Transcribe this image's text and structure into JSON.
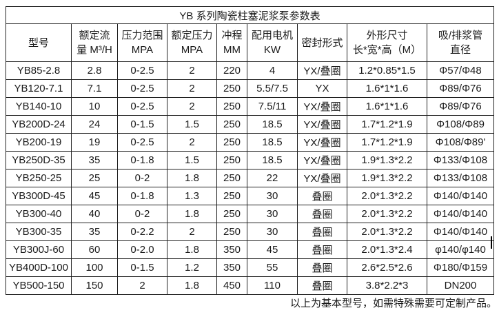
{
  "page": {
    "background": "#ffffff",
    "border_color": "#1f1f1f",
    "text_color": "#1a1a1a"
  },
  "table": {
    "title": "YB 系列陶瓷柱塞泥浆泵参数表",
    "headers": [
      {
        "line1": "型号",
        "line2": ""
      },
      {
        "line1": "额定流",
        "line2": "量 M³/H"
      },
      {
        "line1": "压力范围",
        "line2": "MPA"
      },
      {
        "line1": "额定压力",
        "line2": "MPA"
      },
      {
        "line1": "冲程",
        "line2": "MM"
      },
      {
        "line1": "配用电机",
        "line2": "KW"
      },
      {
        "line1": "密封形式",
        "line2": ""
      },
      {
        "line1": "外形尺寸",
        "line2": "长*宽*高（M）"
      },
      {
        "line1": "吸/排浆管",
        "line2": "直径"
      }
    ],
    "rows": [
      [
        "YB85-2.8",
        "2.8",
        "0-2.5",
        "2",
        "220",
        "4",
        "YX/叠圈",
        "1.2*0.85*1.5",
        "Φ57/Φ48"
      ],
      [
        "YB120-7.1",
        "7.1",
        "0-2.5",
        "2",
        "250",
        "5.5/7.5",
        "YX",
        "1.6*1*1.6",
        "Φ89/Φ76"
      ],
      [
        "YB140-10",
        "10",
        "0-2.5",
        "2",
        "250",
        "7.5/11",
        "YX/叠圈",
        "1.6*1*1.6",
        "Φ89/Φ76"
      ],
      [
        "YB200D-24",
        "24",
        "0-1.5",
        "1.5",
        "250",
        "18.5",
        "YX/叠圈",
        "1.7*1.2*1.9",
        "Φ108/Φ89"
      ],
      [
        "YB200-19",
        "19",
        "0-2.5",
        "2",
        "250",
        "18.5",
        "YX/叠圈",
        "1.7*1.2*1.9",
        "Φ108/Φ89'"
      ],
      [
        "YB250D-35",
        "35",
        "0-1.8",
        "1.5",
        "250",
        "18.5",
        "YX/叠圈",
        "1.9*1.3*2.2",
        "Φ133/Φ108"
      ],
      [
        "YB250-25",
        "25",
        "0-2",
        "1.8",
        "250",
        "22",
        "YX/叠圈",
        "1.9*1.3*2.2",
        "Φ133/Φ108"
      ],
      [
        "YB300D-45",
        "45",
        "0-1.8",
        "1.3",
        "250",
        "30",
        "叠圈",
        "2.0*1.3*2.2",
        "Φ140/Φ140"
      ],
      [
        "YB300-40",
        "40",
        "0-2",
        "1.8",
        "250",
        "30",
        "叠圈",
        "2.0*1.3*2.2",
        "Φ140/Φ140"
      ],
      [
        "YB300-35",
        "35",
        "0-2.2",
        "2",
        "250",
        "30",
        "叠圈",
        "2.0*1.3*2.2",
        "Φ140/Φ140"
      ],
      [
        "YB300J-60",
        "60",
        "0-2.0",
        "1.8",
        "350",
        "45",
        "叠圈",
        "2.0*1.3*2.4",
        "φ140/φ140"
      ],
      [
        "YB400D-100",
        "100",
        "0-1.5",
        "1.2",
        "350",
        "55",
        "叠圈",
        "2.6*2.5*2.6",
        "Φ180/Φ159"
      ],
      [
        "YB500-150",
        "150",
        "2",
        "1.8",
        "450",
        "110",
        "叠圈",
        "3.8*2.2*3",
        "DN200"
      ]
    ]
  },
  "footer": {
    "note": "以上为基本型号，如需特殊需要可定制产品。"
  }
}
